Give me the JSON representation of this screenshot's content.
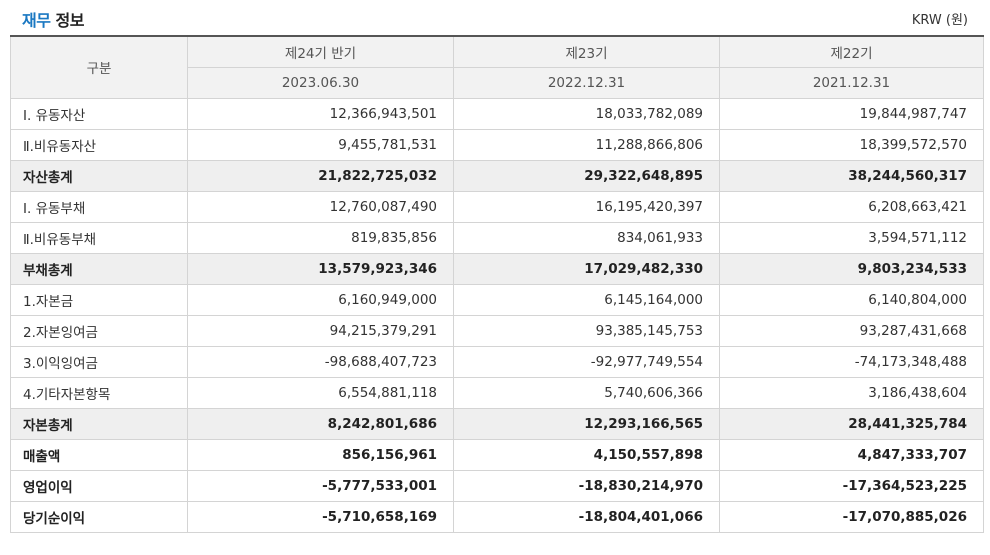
{
  "header": {
    "title_accent": "재무",
    "title_rest": " 정보",
    "unit": "KRW (원)"
  },
  "table": {
    "category_header": "구분",
    "periods": [
      {
        "label": "제24기 반기",
        "date": "2023.06.30"
      },
      {
        "label": "제23기",
        "date": "2022.12.31"
      },
      {
        "label": "제22기",
        "date": "2021.12.31"
      }
    ],
    "rows": [
      {
        "label": "Ⅰ. 유동자산",
        "values": [
          "12,366,943,501",
          "18,033,782,089",
          "19,844,987,747"
        ],
        "style": "normal"
      },
      {
        "label": "Ⅱ.비유동자산",
        "values": [
          "9,455,781,531",
          "11,288,866,806",
          "18,399,572,570"
        ],
        "style": "normal"
      },
      {
        "label": "자산총계",
        "values": [
          "21,822,725,032",
          "29,322,648,895",
          "38,244,560,317"
        ],
        "style": "total"
      },
      {
        "label": "Ⅰ. 유동부채",
        "values": [
          "12,760,087,490",
          "16,195,420,397",
          "6,208,663,421"
        ],
        "style": "normal"
      },
      {
        "label": "Ⅱ.비유동부채",
        "values": [
          "819,835,856",
          "834,061,933",
          "3,594,571,112"
        ],
        "style": "normal"
      },
      {
        "label": "부채총계",
        "values": [
          "13,579,923,346",
          "17,029,482,330",
          "9,803,234,533"
        ],
        "style": "total"
      },
      {
        "label": "1.자본금",
        "values": [
          "6,160,949,000",
          "6,145,164,000",
          "6,140,804,000"
        ],
        "style": "normal"
      },
      {
        "label": "2.자본잉여금",
        "values": [
          "94,215,379,291",
          "93,385,145,753",
          "93,287,431,668"
        ],
        "style": "normal"
      },
      {
        "label": "3.이익잉여금",
        "values": [
          "-98,688,407,723",
          "-92,977,749,554",
          "-74,173,348,488"
        ],
        "style": "normal"
      },
      {
        "label": "4.기타자본항목",
        "values": [
          "6,554,881,118",
          "5,740,606,366",
          "3,186,438,604"
        ],
        "style": "normal"
      },
      {
        "label": "자본총계",
        "values": [
          "8,242,801,686",
          "12,293,166,565",
          "28,441,325,784"
        ],
        "style": "total"
      },
      {
        "label": "매출액",
        "values": [
          "856,156,961",
          "4,150,557,898",
          "4,847,333,707"
        ],
        "style": "bold"
      },
      {
        "label": "영업이익",
        "values": [
          "-5,777,533,001",
          "-18,830,214,970",
          "-17,364,523,225"
        ],
        "style": "bold"
      },
      {
        "label": "당기순이익",
        "values": [
          "-5,710,658,169",
          "-18,804,401,066",
          "-17,070,885,026"
        ],
        "style": "bold"
      }
    ]
  }
}
